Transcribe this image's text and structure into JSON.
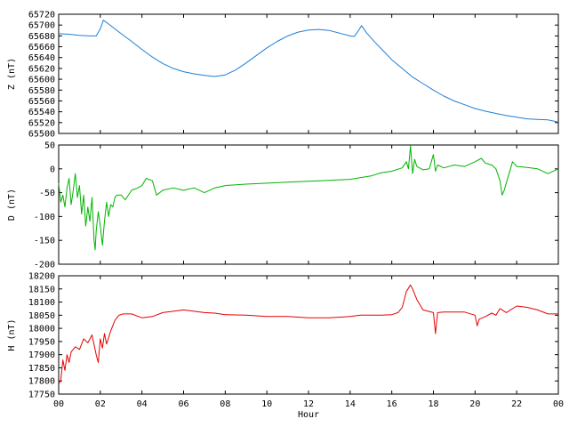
{
  "chart_data": [
    {
      "type": "line",
      "id": "z",
      "ylabel": "Z (nT)",
      "ylim": [
        65500,
        65720
      ],
      "yticks": [
        65500,
        65520,
        65540,
        65560,
        65580,
        65600,
        65620,
        65640,
        65660,
        65680,
        65700,
        65720
      ],
      "grid": false,
      "series": [
        {
          "color": "#1e7fd4",
          "x": [
            0,
            0.5,
            1,
            1.5,
            1.8,
            2.0,
            2.15,
            2.4,
            3,
            3.5,
            4,
            4.5,
            5,
            5.5,
            6,
            6.5,
            7,
            7.5,
            8,
            8.5,
            9,
            9.5,
            10,
            10.5,
            11,
            11.5,
            12,
            12.5,
            13,
            13.5,
            14,
            14.2,
            14.4,
            14.55,
            14.8,
            15.2,
            15.6,
            16,
            16.5,
            17,
            17.5,
            18,
            18.5,
            19,
            19.5,
            20,
            20.5,
            21,
            21.5,
            22,
            22.5,
            23,
            23.5,
            24
          ],
          "y": [
            65684,
            65683,
            65681,
            65680,
            65680,
            65693,
            65709,
            65702,
            65684,
            65670,
            65655,
            65641,
            65629,
            65620,
            65614,
            65610,
            65607,
            65605,
            65608,
            65617,
            65630,
            65644,
            65658,
            65670,
            65680,
            65687,
            65691,
            65692,
            65690,
            65685,
            65680,
            65679,
            65690,
            65699,
            65685,
            65668,
            65652,
            65636,
            65620,
            65604,
            65592,
            65580,
            65569,
            65560,
            65553,
            65546,
            65541,
            65537,
            65533,
            65530,
            65527,
            65526,
            65525,
            65521
          ]
        }
      ]
    },
    {
      "type": "line",
      "id": "d",
      "ylabel": "D (nT)",
      "ylim": [
        -200,
        50
      ],
      "yticks": [
        -200,
        -150,
        -100,
        -50,
        0,
        50
      ],
      "grid": false,
      "series": [
        {
          "color": "#00b400",
          "x": [
            0,
            0.1,
            0.2,
            0.3,
            0.4,
            0.5,
            0.6,
            0.7,
            0.8,
            0.9,
            1.0,
            1.1,
            1.2,
            1.3,
            1.4,
            1.5,
            1.6,
            1.7,
            1.75,
            1.8,
            1.9,
            2.0,
            2.1,
            2.2,
            2.3,
            2.4,
            2.5,
            2.6,
            2.7,
            2.8,
            3.0,
            3.2,
            3.5,
            3.8,
            4.0,
            4.2,
            4.5,
            4.7,
            5.0,
            5.5,
            6.0,
            6.5,
            7.0,
            7.5,
            8.0,
            9.0,
            10.0,
            11.0,
            12.0,
            13.0,
            14.0,
            15.0,
            15.5,
            16.0,
            16.5,
            16.7,
            16.8,
            16.9,
            17.0,
            17.1,
            17.2,
            17.5,
            17.8,
            18.0,
            18.1,
            18.2,
            18.5,
            19.0,
            19.5,
            20.0,
            20.3,
            20.5,
            20.8,
            21.0,
            21.2,
            21.3,
            21.4,
            21.6,
            21.8,
            22.0,
            22.5,
            23.0,
            23.5,
            24.0
          ],
          "y": [
            -30,
            -70,
            -55,
            -80,
            -40,
            -20,
            -75,
            -45,
            -10,
            -60,
            -35,
            -95,
            -55,
            -120,
            -80,
            -110,
            -60,
            -150,
            -170,
            -130,
            -90,
            -120,
            -160,
            -110,
            -70,
            -100,
            -75,
            -80,
            -60,
            -55,
            -55,
            -65,
            -45,
            -40,
            -35,
            -20,
            -25,
            -55,
            -45,
            -40,
            -45,
            -40,
            -50,
            -40,
            -35,
            -32,
            -30,
            -28,
            -26,
            -24,
            -22,
            -15,
            -8,
            -5,
            2,
            15,
            0,
            48,
            -10,
            20,
            5,
            -2,
            0,
            30,
            -5,
            8,
            2,
            8,
            5,
            15,
            22,
            12,
            8,
            0,
            -25,
            -55,
            -45,
            -15,
            15,
            5,
            3,
            0,
            -10,
            0
          ]
        }
      ]
    },
    {
      "type": "line",
      "id": "h",
      "ylabel": "H (nT)",
      "xlabel": "Hour",
      "ylim": [
        17750,
        18200
      ],
      "yticks": [
        17750,
        17800,
        17850,
        17900,
        17950,
        18000,
        18050,
        18100,
        18150,
        18200
      ],
      "xticks": [
        "00",
        "02",
        "04",
        "06",
        "08",
        "10",
        "12",
        "14",
        "16",
        "18",
        "20",
        "22",
        "00"
      ],
      "xlim": [
        0,
        24
      ],
      "grid": false,
      "series": [
        {
          "color": "#e60000",
          "x": [
            0,
            0.1,
            0.2,
            0.3,
            0.4,
            0.5,
            0.6,
            0.8,
            1.0,
            1.2,
            1.4,
            1.6,
            1.8,
            1.9,
            2.0,
            2.1,
            2.2,
            2.3,
            2.5,
            2.7,
            2.9,
            3.1,
            3.5,
            4.0,
            4.5,
            5.0,
            5.5,
            6.0,
            6.5,
            7.0,
            7.5,
            8.0,
            9.0,
            10.0,
            11.0,
            12.0,
            13.0,
            14.0,
            14.5,
            15.0,
            15.5,
            16.0,
            16.3,
            16.5,
            16.7,
            16.9,
            17.0,
            17.2,
            17.5,
            18.0,
            18.1,
            18.2,
            18.5,
            19.0,
            19.5,
            20.0,
            20.1,
            20.2,
            20.5,
            20.8,
            21.0,
            21.2,
            21.5,
            22.0,
            22.5,
            23.0,
            23.5,
            24.0
          ],
          "y": [
            17790,
            17800,
            17880,
            17840,
            17900,
            17870,
            17910,
            17930,
            17920,
            17960,
            17945,
            17975,
            17900,
            17870,
            17960,
            17925,
            17980,
            17940,
            17990,
            18030,
            18050,
            18055,
            18055,
            18040,
            18045,
            18060,
            18065,
            18070,
            18065,
            18060,
            18058,
            18052,
            18050,
            18045,
            18045,
            18040,
            18040,
            18045,
            18050,
            18050,
            18050,
            18052,
            18060,
            18080,
            18140,
            18165,
            18150,
            18110,
            18070,
            18060,
            17980,
            18060,
            18062,
            18062,
            18062,
            18050,
            18010,
            18035,
            18045,
            18058,
            18050,
            18075,
            18060,
            18085,
            18080,
            18070,
            18055,
            18055
          ]
        }
      ]
    }
  ]
}
